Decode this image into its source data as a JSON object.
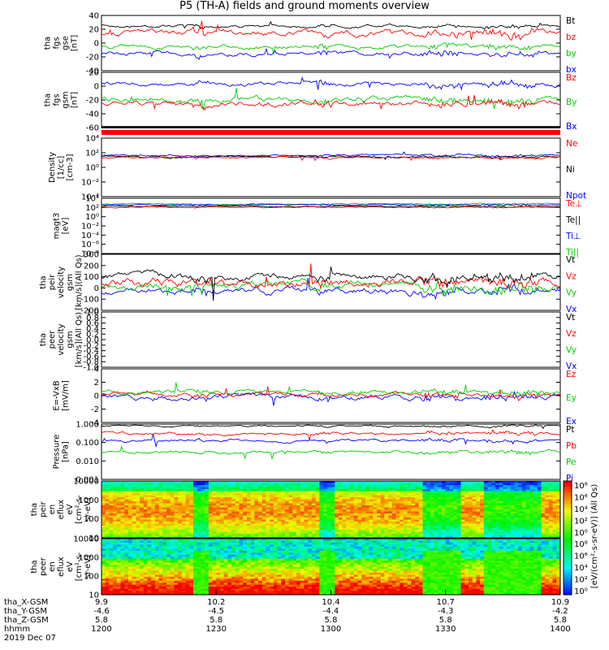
{
  "title": "P5 (TH-A) fields and ground moments overview",
  "date": "2019 Dec 07",
  "chart_data": {
    "type": "line",
    "panels": [
      {
        "id": "fgs",
        "ylabel": [
          "tha",
          "fgs",
          "gse",
          "[nT]"
        ],
        "ylim": [
          -40,
          40
        ],
        "yticks": [
          "40",
          "20",
          "0",
          "-20",
          "-40"
        ],
        "legend": [
          {
            "name": "Bt",
            "color": "#000000"
          },
          {
            "name": "bz",
            "color": "#ff0000"
          },
          {
            "name": "by",
            "color": "#00cc00"
          },
          {
            "name": "bx",
            "color": "#0000ff"
          }
        ]
      },
      {
        "id": "fgs_gsm",
        "ylabel": [
          "tha",
          "fgs",
          "gsm",
          "[nT]"
        ],
        "ylim": [
          -60,
          20
        ],
        "yticks": [
          "20",
          "0",
          "-20",
          "-40",
          "-60"
        ],
        "legend": [
          {
            "name": "Bz",
            "color": "#ff0000"
          },
          {
            "name": "By",
            "color": "#00cc00"
          },
          {
            "name": "Bx",
            "color": "#0000ff"
          }
        ]
      },
      {
        "id": "density",
        "ylabel": [
          "Density",
          "[1/cc]",
          "[cm-3]"
        ],
        "ylim": [
          "1e-4",
          "1e4"
        ],
        "yticks": [
          "10⁴",
          "10²",
          "10⁰",
          "10⁻²",
          "10⁻⁴"
        ],
        "legend": [
          {
            "name": "Ne",
            "color": "#ff0000"
          },
          {
            "name": "Ni",
            "color": "#000000"
          },
          {
            "name": "Npot",
            "color": "#0000ff"
          }
        ]
      },
      {
        "id": "temp",
        "ylabel": [
          "magt3",
          "[eV]"
        ],
        "ylim": [
          "1e-8",
          "1e4"
        ],
        "yticks": [
          "10⁴",
          "10²",
          "10⁰",
          "10⁻²",
          "10⁻⁴",
          "10⁻⁶",
          "10⁻⁸"
        ],
        "legend": [
          {
            "name": "Te⊥",
            "color": "#ff0000"
          },
          {
            "name": "Te||",
            "color": "#000000"
          },
          {
            "name": "Ti⊥",
            "color": "#0000ff"
          },
          {
            "name": "Ti||",
            "color": "#00cc00"
          }
        ]
      },
      {
        "id": "peir_vel",
        "ylabel": [
          "tha",
          "peir",
          "velocity",
          "gsm",
          "[km/s](All Qs)"
        ],
        "ylim": [
          -200,
          300
        ],
        "yticks": [
          "300",
          "200",
          "100",
          "0",
          "-100",
          "-200"
        ],
        "legend": [
          {
            "name": "Vt",
            "color": "#000000"
          },
          {
            "name": "Vz",
            "color": "#ff0000"
          },
          {
            "name": "Vy",
            "color": "#00cc00"
          },
          {
            "name": "Vx",
            "color": "#0000ff"
          }
        ]
      },
      {
        "id": "peer_vel",
        "ylabel": [
          "tha",
          "peer",
          "velocity",
          "gsm",
          "[km/s](All Qs)"
        ],
        "ylim": [
          -1,
          1
        ],
        "yticks": [
          "1.0",
          "0.8",
          "0.6",
          "0.4",
          "0.2",
          "0.0",
          "-0.2",
          "-0.4",
          "-0.6",
          "-0.8",
          "-1.0"
        ],
        "legend": [
          {
            "name": "Vt",
            "color": "#000000"
          },
          {
            "name": "Vz",
            "color": "#ff0000"
          },
          {
            "name": "Vy",
            "color": "#00cc00"
          },
          {
            "name": "Vx",
            "color": "#0000ff"
          }
        ]
      },
      {
        "id": "efield",
        "ylabel": [
          "E=-VxB",
          "[mV/m]"
        ],
        "ylim": [
          -4,
          4
        ],
        "yticks": [
          "4",
          "2",
          "0",
          "-2",
          "-4"
        ],
        "legend": [
          {
            "name": "Ez",
            "color": "#ff0000"
          },
          {
            "name": "Ey",
            "color": "#00cc00"
          },
          {
            "name": "Ex",
            "color": "#0000ff"
          }
        ]
      },
      {
        "id": "pressure",
        "ylabel": [
          "Pressure",
          "[nPa]"
        ],
        "ylim": [
          "0.001",
          "1.0"
        ],
        "yticks": [
          "1.000",
          "0.100",
          "0.010",
          "0.001"
        ],
        "legend": [
          {
            "name": "Pt",
            "color": "#000000"
          },
          {
            "name": "Pb",
            "color": "#ff0000"
          },
          {
            "name": "Pe",
            "color": "#00cc00"
          },
          {
            "name": "Pi",
            "color": "#0000ff"
          }
        ]
      },
      {
        "id": "peir_spec",
        "type": "heatmap",
        "ylabel": [
          "tha",
          "peir",
          "en",
          "eflux",
          "eV",
          "[cm²-s-",
          "sr-eV]"
        ],
        "ylim": [
          10,
          10000
        ],
        "yticks": [
          "10000",
          "1000",
          "100",
          "10"
        ]
      },
      {
        "id": "peer_spec",
        "type": "heatmap",
        "ylabel": [
          "tha",
          "peer",
          "en",
          "eflux",
          "eV",
          "[cm²-s-",
          "sr-eV]"
        ],
        "ylim": [
          10,
          10000
        ],
        "yticks": [
          "10000",
          "1000",
          "100",
          "10"
        ]
      }
    ],
    "colorbar": {
      "label": "[eV/(cm²-s-sr-eV)] (All Qs)",
      "ticks": [
        "10⁸",
        "10⁶",
        "10⁴",
        "10²",
        "10⁰",
        "10⁸",
        "10⁶",
        "10⁴",
        "10²",
        "10⁰"
      ]
    },
    "x_axis": {
      "rows": [
        {
          "label": "tha_X-GSM",
          "values": [
            "9.9",
            "10.2",
            "10.4",
            "10.7",
            "10.9"
          ]
        },
        {
          "label": "tha_Y-GSM",
          "values": [
            "-4.6",
            "-4.5",
            "-4.4",
            "-4.3",
            "-4.2"
          ]
        },
        {
          "label": "tha_Z-GSM",
          "values": [
            "5.8",
            "5.8",
            "5.8",
            "5.8",
            "5.8"
          ]
        },
        {
          "label": "hhmm",
          "values": [
            "1200",
            "1230",
            "1300",
            "1330",
            "1400"
          ]
        }
      ]
    },
    "series_levels": {
      "fgs": {
        "Bt": 25,
        "bz": 15,
        "by": -5,
        "bx": -15
      },
      "fgs_gsm": {
        "Bz": -25,
        "By": -20,
        "Bx": 3
      },
      "peir_vel": {
        "Vt": 100,
        "Vz": 50,
        "Vy": 10,
        "Vx": -30
      },
      "efield": {
        "Ez": 0.2,
        "Ey": 0.5,
        "Ex": -0.2
      },
      "pressure_log": {
        "Pt": -0.1,
        "Pb": -0.5,
        "Pe": -1.5,
        "Pi": -0.9
      }
    }
  }
}
